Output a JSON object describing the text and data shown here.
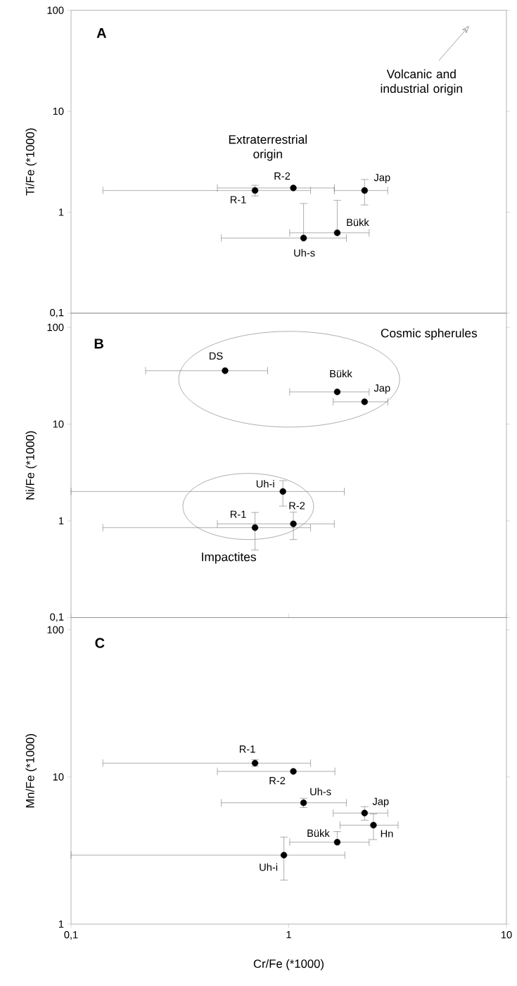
{
  "chart_data": [
    {
      "type": "scatter",
      "log": "xy",
      "ylabel": "Ti/Fe (*1000)",
      "xlim": [
        0.1,
        10
      ],
      "ylim": [
        0.1,
        100
      ],
      "yticks": [
        {
          "value": 0.1,
          "label": "0,1"
        },
        1,
        10,
        100
      ],
      "tick_labels": "y",
      "marker": "circle",
      "annotations": [
        "A",
        "Extraterrestrial origin",
        "Volcanic and industrial origin"
      ],
      "series": [
        {
          "name": "R-1",
          "color": "#000000",
          "x": [
            0.7
          ],
          "values": [
            1.64
          ],
          "errors": [
            [
              1.45,
              1.85
            ]
          ],
          "xerrors": [
            [
              0.14,
              1.26
            ]
          ]
        },
        {
          "name": "R-2",
          "color": "#000000",
          "x": [
            1.05
          ],
          "values": [
            1.74
          ],
          "errors": [
            null
          ],
          "xerrors": [
            [
              0.47,
              1.62
            ]
          ]
        },
        {
          "name": "Jap",
          "color": "#000000",
          "x": [
            2.23
          ],
          "values": [
            1.64
          ],
          "errors": [
            [
              1.18,
              2.11
            ]
          ],
          "xerrors": [
            [
              1.62,
              2.85
            ]
          ]
        },
        {
          "name": "Bükk",
          "color": "#000000",
          "x": [
            1.67
          ],
          "values": [
            0.625
          ],
          "errors": [
            [
              0.625,
              1.31
            ]
          ],
          "xerrors": [
            [
              1.01,
              2.34
            ]
          ]
        },
        {
          "name": "Uh-s",
          "color": "#000000",
          "x": [
            1.17
          ],
          "values": [
            0.555
          ],
          "errors": [
            [
              0.555,
              1.22
            ]
          ],
          "xerrors": [
            [
              0.49,
              1.84
            ]
          ]
        }
      ]
    },
    {
      "type": "scatter",
      "log": "xy",
      "ylabel": "Ni/Fe (*1000)",
      "xlim": [
        0.1,
        10
      ],
      "ylim": [
        0.1,
        140
      ],
      "yticks": [
        {
          "value": 0.1,
          "label": "0,1"
        },
        1,
        10,
        100
      ],
      "tick_labels": "y",
      "marker": "circle",
      "annotations": [
        "B",
        "Cosmic spherules",
        "Impactites"
      ],
      "series": [
        {
          "name": "DS",
          "color": "#000000",
          "x": [
            0.51
          ],
          "values": [
            35.6
          ],
          "errors": [
            null
          ],
          "xerrors": [
            [
              0.22,
              0.8
            ]
          ]
        },
        {
          "name": "Bükk",
          "color": "#000000",
          "x": [
            1.67
          ],
          "values": [
            21.5
          ],
          "errors": [
            null
          ],
          "xerrors": [
            [
              1.01,
              2.34
            ]
          ]
        },
        {
          "name": "Jap",
          "color": "#000000",
          "x": [
            2.23
          ],
          "values": [
            17
          ],
          "errors": [
            null
          ],
          "xerrors": [
            [
              1.6,
              2.85
            ]
          ]
        },
        {
          "name": "Uh-i",
          "color": "#000000",
          "x": [
            0.94
          ],
          "values": [
            2.01
          ],
          "errors": [
            [
              1.42,
              2.6
            ]
          ],
          "xerrors": [
            [
              0.1,
              1.8
            ]
          ]
        },
        {
          "name": "R-1",
          "color": "#000000",
          "x": [
            0.7
          ],
          "values": [
            0.85
          ],
          "errors": [
            [
              0.5,
              1.22
            ]
          ],
          "xerrors": [
            [
              0.14,
              1.26
            ]
          ]
        },
        {
          "name": "R-2",
          "color": "#000000",
          "x": [
            1.05
          ],
          "values": [
            0.93
          ],
          "errors": [
            [
              0.64,
              1.23
            ]
          ],
          "xerrors": [
            [
              0.47,
              1.62
            ]
          ]
        }
      ]
    },
    {
      "type": "scatter",
      "log": "xy",
      "xlabel": "Cr/Fe (*1000)",
      "ylabel": "Mn/Fe (*1000)",
      "xlim": [
        0.1,
        10
      ],
      "ylim": [
        1,
        121
      ],
      "xticks": [
        {
          "value": 0.1,
          "label": "0,1"
        },
        1,
        10
      ],
      "yticks": [
        1,
        10,
        100
      ],
      "marker": "circle",
      "annotations": [
        "C"
      ],
      "series": [
        {
          "name": "R-1",
          "color": "#000000",
          "x": [
            0.7
          ],
          "values": [
            12.4
          ],
          "errors": [
            [
              11.8,
              13.1
            ]
          ],
          "xerrors": [
            [
              0.14,
              1.26
            ]
          ]
        },
        {
          "name": "R-2",
          "color": "#000000",
          "x": [
            1.05
          ],
          "values": [
            10.9
          ],
          "errors": [
            null
          ],
          "xerrors": [
            [
              0.47,
              1.63
            ]
          ]
        },
        {
          "name": "Uh-s",
          "color": "#000000",
          "x": [
            1.17
          ],
          "values": [
            6.67
          ],
          "errors": [
            [
              6.19,
              7.16
            ]
          ],
          "xerrors": [
            [
              0.49,
              1.84
            ]
          ]
        },
        {
          "name": "Jap",
          "color": "#000000",
          "x": [
            2.23
          ],
          "values": [
            5.68
          ],
          "errors": [
            [
              5.08,
              6.28
            ]
          ],
          "xerrors": [
            [
              1.6,
              2.85
            ]
          ]
        },
        {
          "name": "Hn",
          "color": "#000000",
          "x": [
            2.45
          ],
          "values": [
            4.7
          ],
          "errors": [
            [
              3.75,
              5.6
            ]
          ],
          "xerrors": [
            [
              1.72,
              3.18
            ]
          ]
        },
        {
          "name": "Bükk",
          "color": "#000000",
          "x": [
            1.67
          ],
          "values": [
            3.6
          ],
          "errors": [
            [
              3.6,
              4.25
            ]
          ],
          "xerrors": [
            [
              1.01,
              2.34
            ]
          ]
        },
        {
          "name": "Uh-i",
          "color": "#000000",
          "x": [
            0.95
          ],
          "values": [
            2.94
          ],
          "errors": [
            [
              1.99,
              3.9
            ]
          ],
          "xerrors": [
            [
              0.1,
              1.81
            ]
          ]
        }
      ]
    }
  ]
}
